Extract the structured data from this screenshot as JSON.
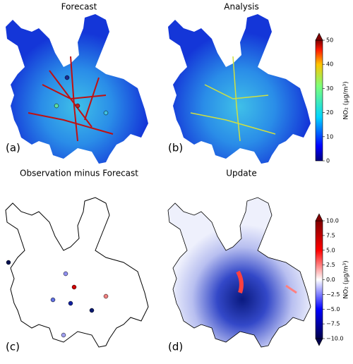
{
  "panels": [
    {
      "title": "Forecast",
      "label": "(a)"
    },
    {
      "title": "Analysis",
      "label": "(b)"
    },
    {
      "title": "Observation minus Forecast",
      "label": "(c)"
    },
    {
      "title": "Update",
      "label": "(d)"
    }
  ],
  "colorbars": [
    {
      "label": "NO₂ (µg/m³)",
      "lim": [
        0,
        50
      ],
      "ticks": [
        0,
        10,
        20,
        30,
        40,
        50
      ]
    },
    {
      "label": "NO₂ (µg/m³)",
      "lim": [
        -10,
        10
      ],
      "ticks": [
        {
          "value": -10,
          "label": "−10.0"
        },
        {
          "value": -7.5,
          "label": "−7.5"
        },
        {
          "value": -5,
          "label": "−5.0"
        },
        {
          "value": -2.5,
          "label": "−2.5"
        },
        {
          "value": 0,
          "label": "0.0"
        },
        {
          "value": 2.5,
          "label": "2.5"
        },
        {
          "value": 5,
          "label": "5.0"
        },
        {
          "value": 7.5,
          "label": "7.5"
        },
        {
          "value": 10,
          "label": "10.0"
        }
      ]
    }
  ]
}
